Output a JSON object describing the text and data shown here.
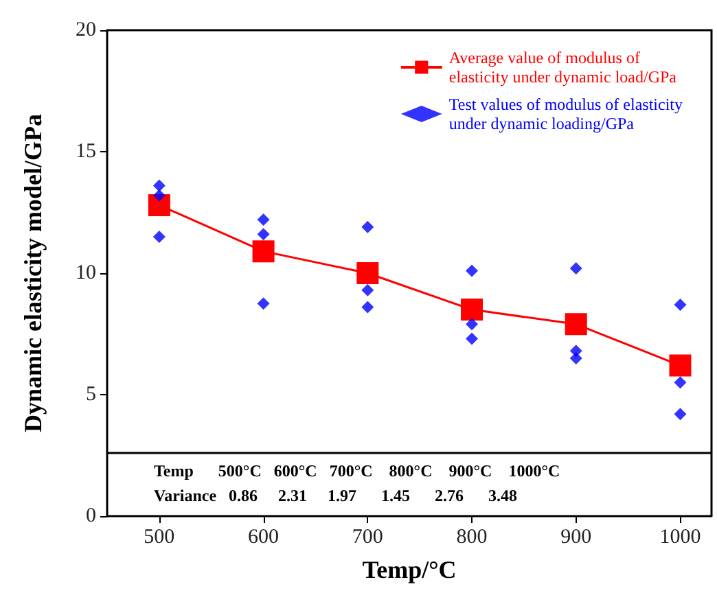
{
  "chart_data": {
    "type": "line",
    "xlabel": "Temp/°C",
    "ylabel": "Dynamic elasticity model/GPa",
    "xlim": [
      450,
      1030
    ],
    "xticks": [
      500,
      600,
      700,
      800,
      900,
      1000
    ],
    "ylim": [
      0,
      20
    ],
    "yticks": [
      0,
      5,
      10,
      15,
      20
    ],
    "grid": false,
    "ref_lines": [
      {
        "axis": "y",
        "value": 2.6,
        "color": "#000000"
      }
    ],
    "legend": "top right",
    "series": [
      {
        "name": "Average value of modulus of elasticity under dynamic load/GPa",
        "color": "#ff0000",
        "marker": "square",
        "x": [
          500,
          600,
          700,
          800,
          900,
          1000
        ],
        "values": [
          12.8,
          10.9,
          10.0,
          8.5,
          7.9,
          6.2
        ]
      },
      {
        "name": "Test values of modulus of elasticity under dynamic loading/GPa",
        "color": "#0000ff",
        "type": "scatter",
        "marker": "diamond",
        "x": [
          500,
          500,
          500,
          600,
          600,
          600,
          700,
          700,
          700,
          800,
          800,
          800,
          900,
          900,
          900,
          1000,
          1000,
          1000
        ],
        "values": [
          13.6,
          13.2,
          11.5,
          12.2,
          11.6,
          8.75,
          11.9,
          9.3,
          8.6,
          10.1,
          7.9,
          7.3,
          10.2,
          6.8,
          6.5,
          8.7,
          5.5,
          4.2
        ]
      }
    ],
    "annotations": [
      "Temp      500°C   600°C   700°C    800°C    900°C    1000°C",
      "Variance   0.86     2.31     1.97      1.45      2.76      3.48"
    ]
  }
}
